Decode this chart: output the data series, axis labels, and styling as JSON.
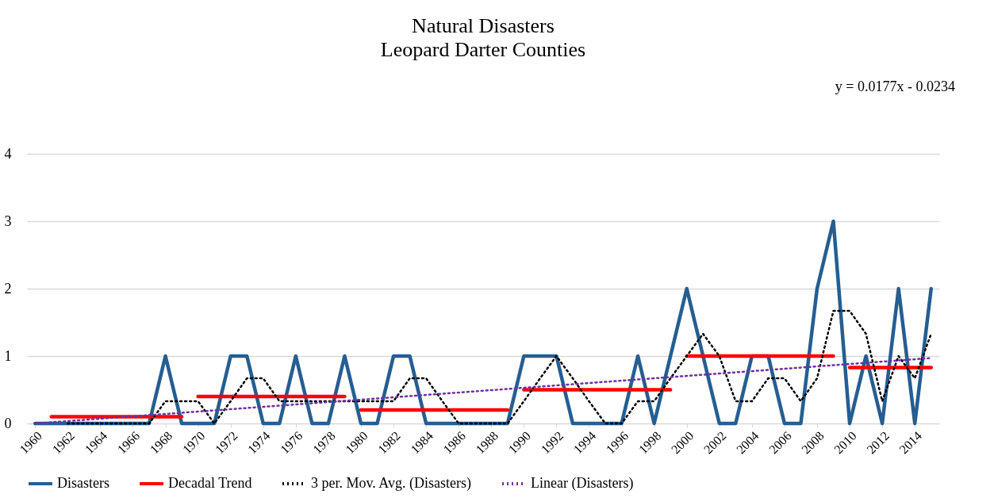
{
  "chart_data": {
    "type": "line",
    "title": "Natural Disasters",
    "subtitle": "Leopard Darter Counties",
    "annotations": [
      "y = 0.0177x - 0.0234"
    ],
    "x": [
      1960,
      1961,
      1962,
      1963,
      1964,
      1965,
      1966,
      1967,
      1968,
      1969,
      1970,
      1971,
      1972,
      1973,
      1974,
      1975,
      1976,
      1977,
      1978,
      1979,
      1980,
      1981,
      1982,
      1983,
      1984,
      1985,
      1986,
      1987,
      1988,
      1989,
      1990,
      1991,
      1992,
      1993,
      1994,
      1995,
      1996,
      1997,
      1998,
      1999,
      2000,
      2001,
      2002,
      2003,
      2004,
      2005,
      2006,
      2007,
      2008,
      2009,
      2010,
      2011,
      2012,
      2013,
      2014,
      2015
    ],
    "series": [
      {
        "name": "Disasters",
        "color": "#255e91",
        "line_style": "solid",
        "values": [
          0,
          0,
          0,
          0,
          0,
          0,
          0,
          0,
          1,
          0,
          0,
          0,
          1,
          1,
          0,
          0,
          1,
          0,
          0,
          1,
          0,
          0,
          1,
          1,
          0,
          0,
          0,
          0,
          0,
          0,
          1,
          1,
          1,
          0,
          0,
          0,
          0,
          1,
          0,
          1,
          2,
          1,
          0,
          0,
          1,
          1,
          0,
          0,
          2,
          3,
          0,
          1,
          0,
          2,
          0,
          2
        ]
      },
      {
        "name": "Decadal Trend",
        "color": "#ff0000",
        "line_style": "solid",
        "x": [
          1961,
          1969
        ],
        "values": [
          0.1,
          0.1
        ]
      },
      {
        "color": "#ff0000",
        "line_style": "solid",
        "x": [
          1970,
          1979
        ],
        "values": [
          0.4,
          0.4
        ]
      },
      {
        "color": "#ff0000",
        "line_style": "solid",
        "x": [
          1980,
          1989
        ],
        "values": [
          0.2,
          0.2
        ]
      },
      {
        "color": "#ff0000",
        "line_style": "solid",
        "x": [
          1990,
          1999
        ],
        "values": [
          0.5,
          0.5
        ]
      },
      {
        "color": "#ff0000",
        "line_style": "solid",
        "x": [
          2000,
          2009
        ],
        "values": [
          1.0,
          1.0
        ]
      },
      {
        "color": "#ff0000",
        "line_style": "solid",
        "x": [
          2010,
          2015
        ],
        "values": [
          0.83,
          0.83
        ]
      },
      {
        "name": "3 per. Mov. Avg. (Disasters)",
        "color": "#000000",
        "line_style": "dotted",
        "x": [
          1962,
          1963,
          1964,
          1965,
          1966,
          1967,
          1968,
          1969,
          1970,
          1971,
          1972,
          1973,
          1974,
          1975,
          1976,
          1977,
          1978,
          1979,
          1980,
          1981,
          1982,
          1983,
          1984,
          1985,
          1986,
          1987,
          1988,
          1989,
          1990,
          1991,
          1992,
          1993,
          1994,
          1995,
          1996,
          1997,
          1998,
          1999,
          2000,
          2001,
          2002,
          2003,
          2004,
          2005,
          2006,
          2007,
          2008,
          2009,
          2010,
          2011,
          2012,
          2013,
          2014,
          2015
        ],
        "values": [
          0,
          0,
          0,
          0,
          0,
          0,
          0.33,
          0.33,
          0.33,
          0,
          0.33,
          0.67,
          0.67,
          0.33,
          0.33,
          0.33,
          0.33,
          0.33,
          0.33,
          0.33,
          0.33,
          0.67,
          0.67,
          0.33,
          0,
          0,
          0,
          0,
          0.33,
          0.67,
          1,
          0.67,
          0.33,
          0,
          0,
          0.33,
          0.33,
          0.67,
          1,
          1.33,
          1,
          0.33,
          0.33,
          0.67,
          0.67,
          0.33,
          0.67,
          1.67,
          1.67,
          1.33,
          0.33,
          1,
          0.67,
          1.33
        ]
      },
      {
        "name": "Linear (Disasters)",
        "color": "#7030a0",
        "line_style": "dotted",
        "x": [
          1960,
          2015
        ],
        "values": [
          0.0,
          0.97
        ]
      }
    ],
    "xlim": [
      1959.5,
      2015.5
    ],
    "xticks": [
      1960,
      1962,
      1964,
      1966,
      1968,
      1970,
      1972,
      1974,
      1976,
      1978,
      1980,
      1982,
      1984,
      1986,
      1988,
      1990,
      1992,
      1994,
      1996,
      1998,
      2000,
      2002,
      2004,
      2006,
      2008,
      2010,
      2012,
      2014
    ],
    "ylim": [
      0,
      4
    ],
    "yticks": [
      0,
      1,
      2,
      3,
      4
    ],
    "grid": "y",
    "legend": "bottom",
    "marker": "none"
  }
}
